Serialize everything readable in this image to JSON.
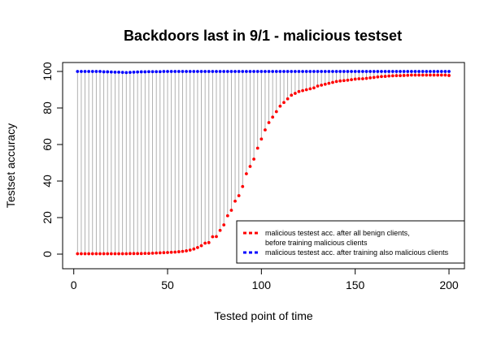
{
  "chart_data": {
    "type": "scatter",
    "title": "Backdoors last in 9/1 - malicious testset",
    "xlabel": "Tested point of time",
    "ylabel": "Testset accuracy",
    "xlim": [
      1,
      200
    ],
    "ylim": [
      0,
      100
    ],
    "x_ticks": [
      0,
      50,
      100,
      150,
      200
    ],
    "y_ticks": [
      0,
      20,
      40,
      60,
      80,
      100
    ],
    "grid": false,
    "legend_position": "bottom-right",
    "connector_color": "#a8a8a8",
    "series": [
      {
        "name": "malicious testest acc. after all benign clients,",
        "name_line2": "before training malicious clients",
        "color": "#ff0000",
        "x": [
          2,
          4,
          6,
          8,
          10,
          12,
          14,
          16,
          18,
          20,
          22,
          24,
          26,
          28,
          30,
          32,
          34,
          36,
          38,
          40,
          42,
          44,
          46,
          48,
          50,
          52,
          54,
          56,
          58,
          60,
          62,
          64,
          66,
          68,
          70,
          72,
          74,
          76,
          78,
          80,
          82,
          84,
          86,
          88,
          90,
          92,
          94,
          96,
          98,
          100,
          102,
          104,
          106,
          108,
          110,
          112,
          114,
          116,
          118,
          120,
          122,
          124,
          126,
          128,
          130,
          132,
          134,
          136,
          138,
          140,
          142,
          144,
          146,
          148,
          150,
          152,
          154,
          156,
          158,
          160,
          162,
          164,
          166,
          168,
          170,
          172,
          174,
          176,
          178,
          180,
          182,
          184,
          186,
          188,
          190,
          192,
          194,
          196,
          198,
          200
        ],
        "values": [
          0.2,
          0.2,
          0.2,
          0.2,
          0.2,
          0.2,
          0.2,
          0.2,
          0.2,
          0.2,
          0.2,
          0.2,
          0.2,
          0.2,
          0.3,
          0.3,
          0.3,
          0.3,
          0.4,
          0.4,
          0.5,
          0.6,
          0.7,
          0.8,
          0.9,
          1.0,
          1.1,
          1.3,
          1.5,
          1.8,
          2.2,
          2.8,
          3.6,
          4.6,
          6.0,
          6.3,
          9.5,
          9.6,
          13,
          16,
          21,
          24,
          29,
          32,
          37,
          44,
          48,
          52,
          58,
          63,
          68,
          72,
          75,
          78,
          81,
          83,
          85,
          87,
          88,
          89,
          89.5,
          90,
          90.5,
          91,
          92,
          92.5,
          93,
          93.5,
          94,
          94.5,
          94.8,
          95,
          95.2,
          95.5,
          95.8,
          96,
          96,
          96.2,
          96.5,
          96.7,
          97,
          97.2,
          97.3,
          97.5,
          97.6,
          97.7,
          97.7,
          97.8,
          97.9,
          98,
          98,
          98,
          98,
          98,
          98,
          98,
          98,
          98,
          98,
          97.8
        ]
      },
      {
        "name": "malicious testest acc. after training also malicious clients",
        "color": "#0000ff",
        "x": [
          2,
          4,
          6,
          8,
          10,
          12,
          14,
          16,
          18,
          20,
          22,
          24,
          26,
          28,
          30,
          32,
          34,
          36,
          38,
          40,
          42,
          44,
          46,
          48,
          50,
          52,
          54,
          56,
          58,
          60,
          62,
          64,
          66,
          68,
          70,
          72,
          74,
          76,
          78,
          80,
          82,
          84,
          86,
          88,
          90,
          92,
          94,
          96,
          98,
          100,
          102,
          104,
          106,
          108,
          110,
          112,
          114,
          116,
          118,
          120,
          122,
          124,
          126,
          128,
          130,
          132,
          134,
          136,
          138,
          140,
          142,
          144,
          146,
          148,
          150,
          152,
          154,
          156,
          158,
          160,
          162,
          164,
          166,
          168,
          170,
          172,
          174,
          176,
          178,
          180,
          182,
          184,
          186,
          188,
          190,
          192,
          194,
          196,
          198,
          200
        ],
        "values": [
          100,
          100,
          100,
          100,
          100,
          100,
          100,
          99.8,
          99.8,
          99.7,
          99.6,
          99.6,
          99.5,
          99.4,
          99.5,
          99.6,
          99.7,
          99.8,
          99.8,
          99.9,
          99.9,
          99.9,
          99.9,
          100,
          100,
          100,
          100,
          100,
          100,
          100,
          100,
          100,
          100,
          100,
          100,
          100,
          100,
          100,
          100,
          100,
          100,
          100,
          100,
          100,
          100,
          100,
          100,
          100,
          100,
          100,
          100,
          100,
          100,
          100,
          100,
          100,
          100,
          100,
          100,
          100,
          100,
          100,
          100,
          100,
          100,
          100,
          100,
          100,
          100,
          100,
          100,
          100,
          100,
          100,
          100,
          100,
          100,
          100,
          100,
          100,
          100,
          100,
          100,
          100,
          100,
          100,
          100,
          100,
          100,
          100,
          100,
          100,
          100,
          100,
          100,
          100,
          100,
          100,
          100,
          100
        ]
      }
    ]
  }
}
